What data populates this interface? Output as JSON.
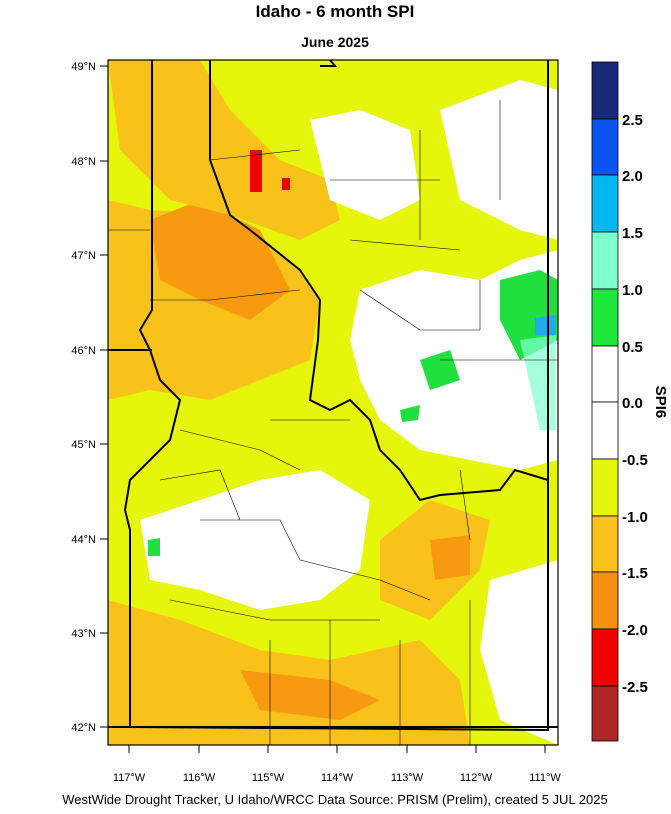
{
  "header": {
    "title": "Idaho - 6 month SPI",
    "subtitle": "June 2025"
  },
  "lat_labels": [
    "49°N",
    "48°N",
    "47°N",
    "46°N",
    "45°N",
    "44°N",
    "43°N",
    "42°N"
  ],
  "lon_labels": [
    "117°W",
    "116°W",
    "115°W",
    "114°W",
    "113°W",
    "112°W",
    "111°W"
  ],
  "colorbar": {
    "title": "SPI6",
    "labels": [
      "2.5",
      "2.0",
      "1.5",
      "1.0",
      "0.5",
      "0.0",
      "-0.5",
      "-1.0",
      "-1.5",
      "-2.0",
      "-2.5"
    ]
  },
  "footer": "WestWide Drought Tracker, U Idaho/WRCC Data Source: PRISM (Prelim), created  5 JUL 2025"
}
